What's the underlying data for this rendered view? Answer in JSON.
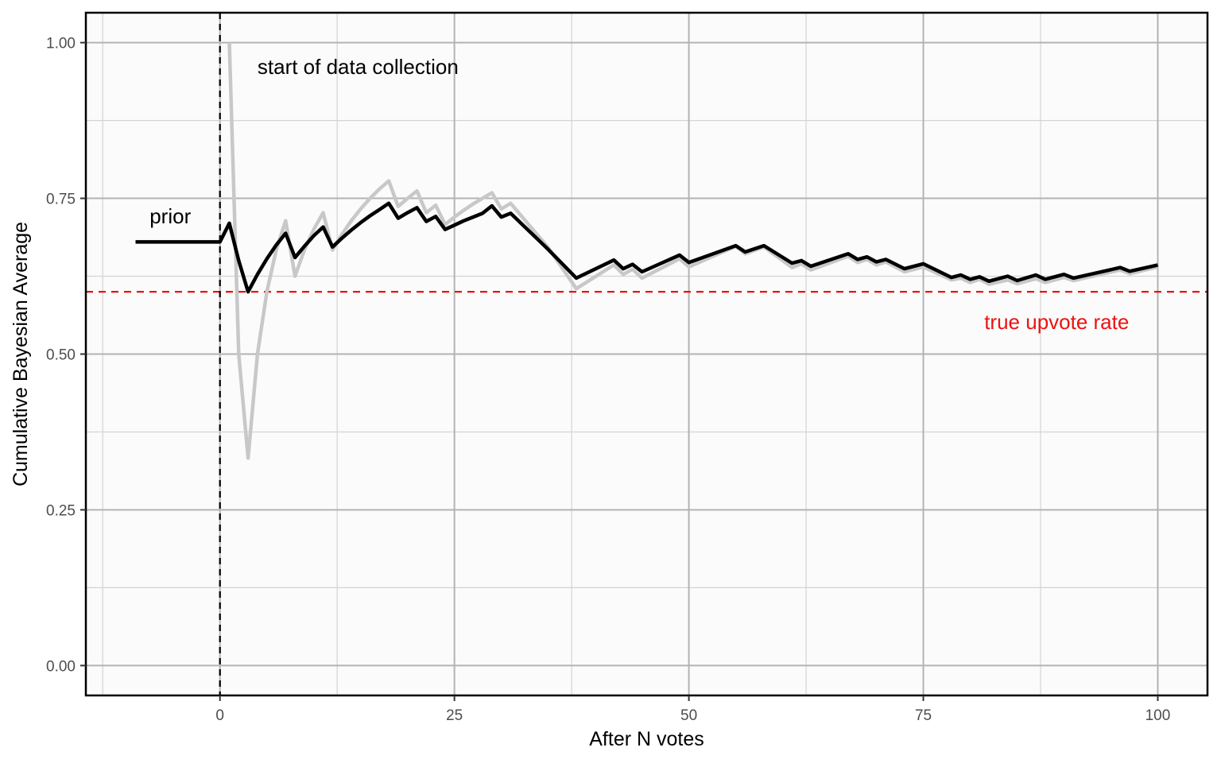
{
  "chart_data": {
    "type": "line",
    "title": "",
    "xlabel": "After N votes",
    "ylabel": "Cumulative Bayesian Average",
    "xlim": [
      -14.3,
      105.3
    ],
    "ylim": [
      -0.048,
      1.048
    ],
    "x_ticks": [
      0,
      25,
      50,
      75,
      100
    ],
    "x_tick_labels": [
      "0",
      "25",
      "50",
      "75",
      "100"
    ],
    "y_ticks": [
      0,
      0.25,
      0.5,
      0.75,
      1.0
    ],
    "y_tick_labels": [
      "0.00",
      "0.25",
      "0.50",
      "0.75",
      "1.00"
    ],
    "grid": true,
    "legend": "none",
    "colors": {
      "panel_background": "#fbfbfb",
      "major_grid": "#b3b3b3",
      "minor_grid": "#d4d4d4",
      "bayesian_series": "#000000",
      "raw_series": "#c8c8c8",
      "true_rate_line": "#ee1111",
      "start_line": "#000000"
    },
    "series": [
      {
        "style": "thick black line",
        "x": [
          -9,
          0,
          1,
          2,
          3,
          4,
          5,
          6,
          7,
          8,
          9,
          10,
          11,
          12,
          13,
          14,
          15,
          16,
          17,
          18,
          19,
          20,
          21,
          22,
          23,
          24,
          25,
          26,
          27,
          28,
          29,
          30,
          31,
          35,
          38,
          42,
          43,
          44,
          45,
          49,
          50,
          55,
          56,
          58,
          61,
          62,
          63,
          67,
          68,
          69,
          70,
          71,
          73,
          75,
          78,
          79,
          80,
          81,
          82,
          84,
          85,
          87,
          88,
          90,
          91,
          96,
          97,
          100
        ],
        "y": [
          0.68,
          0.68,
          0.71,
          0.65,
          0.6,
          0.628,
          0.653,
          0.675,
          0.694,
          0.655,
          0.673,
          0.69,
          0.704,
          0.672,
          0.686,
          0.699,
          0.711,
          0.722,
          0.732,
          0.742,
          0.718,
          0.727,
          0.735,
          0.713,
          0.721,
          0.7,
          0.707,
          0.714,
          0.72,
          0.726,
          0.738,
          0.72,
          0.726,
          0.668,
          0.622,
          0.651,
          0.637,
          0.644,
          0.632,
          0.659,
          0.647,
          0.674,
          0.664,
          0.674,
          0.646,
          0.65,
          0.641,
          0.661,
          0.652,
          0.656,
          0.648,
          0.652,
          0.637,
          0.645,
          0.623,
          0.627,
          0.62,
          0.624,
          0.617,
          0.625,
          0.618,
          0.627,
          0.62,
          0.628,
          0.622,
          0.639,
          0.633,
          0.643
        ]
      },
      {
        "style": "thin grey line",
        "x": [
          1,
          2,
          3,
          4,
          5,
          6,
          7,
          8,
          9,
          10,
          11,
          12,
          13,
          14,
          15,
          16,
          17,
          18,
          19,
          20,
          21,
          22,
          23,
          24,
          25,
          26,
          27,
          28,
          29,
          30,
          31,
          35,
          38,
          42,
          43,
          44,
          45,
          49,
          50,
          55,
          56,
          58,
          61,
          62,
          63,
          67,
          68,
          69,
          70,
          71,
          73,
          75,
          78,
          79,
          80,
          81,
          82,
          84,
          85,
          87,
          88,
          90,
          91,
          96,
          97,
          100
        ],
        "y": [
          1.0,
          0.5,
          0.333,
          0.5,
          0.6,
          0.667,
          0.714,
          0.625,
          0.667,
          0.7,
          0.727,
          0.667,
          0.692,
          0.714,
          0.733,
          0.75,
          0.765,
          0.778,
          0.737,
          0.75,
          0.762,
          0.727,
          0.739,
          0.708,
          0.72,
          0.731,
          0.741,
          0.75,
          0.759,
          0.733,
          0.742,
          0.671,
          0.605,
          0.643,
          0.628,
          0.636,
          0.622,
          0.653,
          0.64,
          0.673,
          0.661,
          0.672,
          0.639,
          0.645,
          0.635,
          0.657,
          0.647,
          0.652,
          0.643,
          0.648,
          0.632,
          0.64,
          0.619,
          0.622,
          0.615,
          0.62,
          0.612,
          0.619,
          0.613,
          0.621,
          0.615,
          0.623,
          0.618,
          0.635,
          0.629,
          0.64
        ]
      }
    ],
    "reference_lines": [
      {
        "orientation": "horizontal",
        "value": 0.6,
        "style": "dashed red"
      },
      {
        "orientation": "vertical",
        "value": 0,
        "style": "dashed black"
      }
    ],
    "annotations": [
      {
        "text": "start of data collection",
        "x": 4,
        "y": 0.95,
        "color": "#000000"
      },
      {
        "text": "prior",
        "x": -7.5,
        "y": 0.71,
        "color": "#000000"
      },
      {
        "text": "true upvote rate",
        "x": 81.5,
        "y": 0.54,
        "color": "#ee1111"
      }
    ]
  }
}
